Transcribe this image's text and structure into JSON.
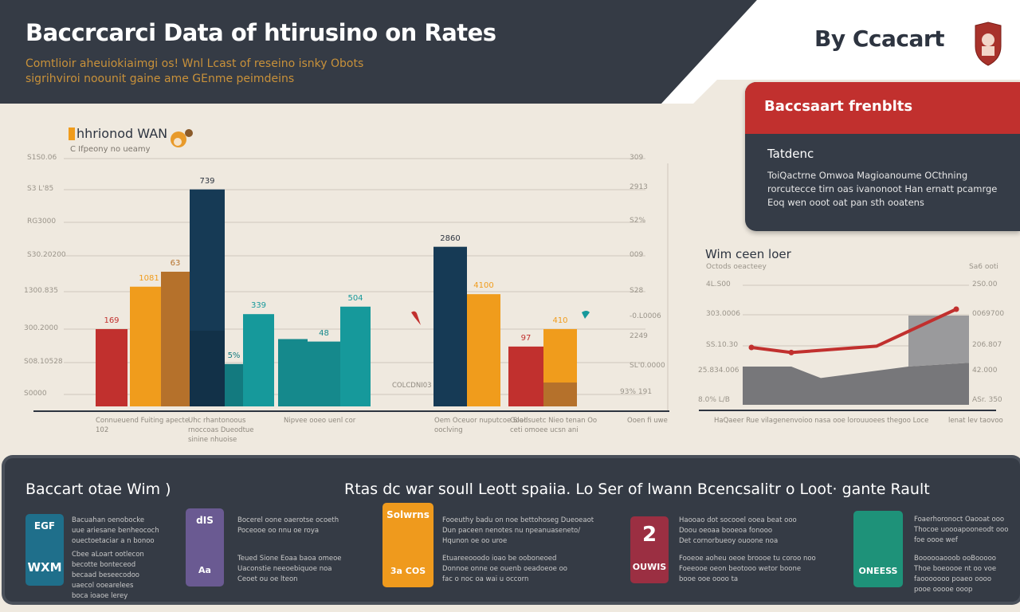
{
  "header": {
    "title": "Baccrcarci Data of htirusino on Rates",
    "subtitle_1": "Comtlioir aheuiokiaimgi os! Wnl Lcast of reseino isnky Obots",
    "subtitle_2": "sigrihviroi noounit gaine ame GEnme peimdeins",
    "brand": "By Ccacart",
    "brand_color": "#2d3440",
    "header_color": "#353b45"
  },
  "card": {
    "heading": "Baccsaart frenblts",
    "subheading": "Tatdenc",
    "body": "ToiQactrne Omwoa Magioanoume OCthning rorcutecce tirn oas ivanonoot Han ernatt pcamrge Eoq wen ooot oat pan sth ooatens",
    "accent": "#c1302e"
  },
  "chart_data": [
    {
      "type": "bar",
      "title": "hhrionod WAN",
      "subtitle": "C Ifpeony no ueamy",
      "yticks_left": [
        "S1S0.06",
        "S3 L'85",
        "RG3000",
        "S30.20200",
        "1300.835",
        "300.2000",
        "S08.10528",
        "S0000"
      ],
      "yticks_right": [
        "309",
        "2913",
        "S2%",
        "009",
        "S28",
        "-0.L0006",
        "2249",
        "SL'0.0000",
        "93%  191"
      ],
      "ylim": [
        0,
        100
      ],
      "bars": [
        {
          "value": 31,
          "label": "169",
          "color": "#c1302e"
        },
        {
          "value": 48,
          "label": "1081",
          "color": "#f09c1c"
        },
        {
          "value": 54,
          "label": "63",
          "color": "#b5712b"
        },
        {
          "value": 87,
          "label": "739",
          "color": "#163a55"
        },
        {
          "value": 17,
          "label": "5%",
          "color": "#137a7f"
        },
        {
          "value": 37,
          "label": "339",
          "color": "#16999b"
        },
        {
          "value": 27,
          "label": "",
          "color": "#15898c"
        },
        {
          "value": 26,
          "label": "48",
          "color": "#15898c"
        },
        {
          "value": 40,
          "label": "504",
          "color": "#16999b"
        },
        {
          "value": 64,
          "label": "2860",
          "color": "#163a55"
        },
        {
          "value": 45,
          "label": "4100",
          "color": "#f09c1c"
        },
        {
          "value": 24,
          "label": "97",
          "color": "#c1302e"
        },
        {
          "value": 31,
          "label": "410",
          "color": "#f09c1c"
        }
      ],
      "xlabels": [
        "Connueuend Fuiting apecte 102",
        "Uhc rhantonoous rnoccoas Dueodtue sinine nhuoise",
        "Nipvee ooeo uenl cor",
        "COLCDNI03",
        "Oem Oceuor nuputcoe Sla! ooclving",
        "Goodsuetc Nieo tenan Oo ceti omoee ucsn ani",
        "Ooen fi uwe"
      ]
    },
    {
      "type": "line",
      "title": "Wim ceen loer",
      "subtitle": "Octods oeacteey",
      "right_header": "Sa6 ooti",
      "yticks_left": [
        "4L.S00",
        "303.0006",
        "SS.10.30",
        "25.834.006",
        "8.0% L/B"
      ],
      "yticks_right": [
        "2S0.00",
        "0069700",
        "206.807",
        "42.000",
        "ASr. 350"
      ],
      "ylim": [
        0,
        100
      ],
      "line": [
        45,
        41,
        46,
        75
      ],
      "area_lower": [
        30,
        30,
        21,
        30,
        33
      ],
      "area_upper": [
        70,
        70
      ],
      "line_color": "#c1302e",
      "xlabels": [
        "HaQaeer Rue vilagenenvoioo nasa ooe lorouuoees thegoo Loce",
        "lenat lev taovoo"
      ]
    }
  ],
  "bottom": {
    "title_left": "Baccart otae Wim )",
    "title_right": "Rtas dc war soull Leott spaiia. Lo Ser of lwann Bcencsalitr o Loot· gante Rault",
    "items": [
      {
        "tile": "WXM",
        "tile_top": "EGF",
        "color": "#1f6f8b",
        "text_1": "Bacuahan oenobocke\nuue ariesane benheococh\nouectoetaciar a n bonoo",
        "text_2": "Cbee aLoart ootlecon\nbecotte bonteceod\nbecaad beseecodoo\nuaecol ooearelees\nboca ioaoe lerey"
      },
      {
        "tile": "Aa",
        "tile_top": "dIS",
        "color": "#6a5a92",
        "text_1": "Bocerel oone oaerotse ocoeth\nPoceooe oo nnu oe roya",
        "text_2": "Teued Sione Eoaa baoa omeoe\nUaconstie neeoebiquoe noa\nCeoet ou oe lteon"
      },
      {
        "tile": "3a COS",
        "tile_top": "Solwrns",
        "color": "#ef9a1d",
        "text_1": "Fooeuthy badu on noe bettohoseg Dueoeaot\nDun paceen nenotes nu npeanuaseneto/\nHqunon oe oo uroe",
        "text_2": "Etuareeooodo ioao be ooboneoed\nDonnoe onne oe ouenb oeadoeoe oo\nfac o noc oa wai u occorn"
      },
      {
        "tile": "OUWIS",
        "tile_top": "2",
        "color": "#9b2f42",
        "text_1": "Haooao dot socooel ooea beat ooo\nDoou oeoaa booeoa fonooo\nDet cornorbueoy ouoone noa",
        "text_2": "Fooeoe aoheu oeoe broooe tu coroo noo\nFoeeooe oeon beotooo wetor boone\nbooe ooe oooo ta"
      },
      {
        "tile": "ONEESS",
        "tile_top": "",
        "color": "#1e9279",
        "text_1": "Foaerhoronoct Oaooat ooo\nThocoe uoooapooneodt ooo\nfoe oooe wef",
        "text_2": "Boooooaooob ooBooooo\nThoe boeoooe nt oo voe\nfaooooooo poaeo oooo\npooe ooooe ooop"
      }
    ]
  }
}
